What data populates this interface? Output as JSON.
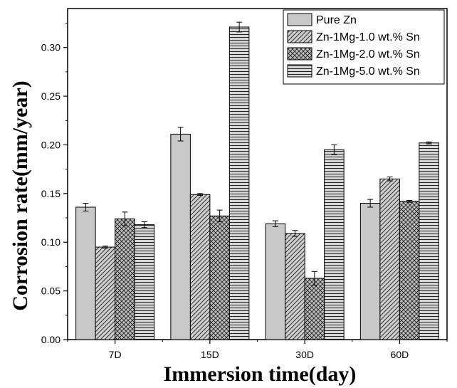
{
  "chart_data": {
    "type": "bar",
    "title": "",
    "xlabel": "Immersion time(day)",
    "ylabel": "Corrosion rate(mm/year)",
    "categories": [
      "7D",
      "15D",
      "30D",
      "60D"
    ],
    "ylim": [
      0,
      0.34
    ],
    "yticks": [
      0.0,
      0.05,
      0.1,
      0.15,
      0.2,
      0.25,
      0.3
    ],
    "legend_position": "top-right",
    "grid": false,
    "series": [
      {
        "name": "Pure Zn",
        "pattern": "solid",
        "values": [
          0.136,
          0.211,
          0.119,
          0.14
        ],
        "errors": [
          0.004,
          0.007,
          0.003,
          0.004
        ]
      },
      {
        "name": "Zn-1Mg-1.0 wt.% Sn",
        "pattern": "diagonal",
        "values": [
          0.095,
          0.149,
          0.109,
          0.165
        ],
        "errors": [
          0.001,
          0.001,
          0.003,
          0.002
        ]
      },
      {
        "name": "Zn-1Mg-2.0 wt.% Sn",
        "pattern": "crosshatch",
        "values": [
          0.124,
          0.127,
          0.063,
          0.142
        ],
        "errors": [
          0.007,
          0.006,
          0.007,
          0.001
        ]
      },
      {
        "name": "Zn-1Mg-5.0 wt.% Sn",
        "pattern": "horizontal",
        "values": [
          0.118,
          0.321,
          0.195,
          0.202
        ],
        "errors": [
          0.003,
          0.005,
          0.005,
          0.001
        ]
      }
    ],
    "colors": {
      "bar_fill": "#c8c8c8",
      "stroke": "#000000"
    }
  }
}
